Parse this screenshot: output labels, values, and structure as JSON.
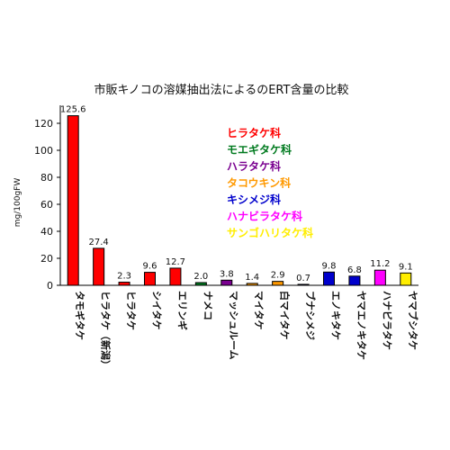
{
  "chart_data": {
    "type": "bar",
    "title": "市販キノコの溶媒抽出法によるのERT含量の比較",
    "ylabel": "mg/100gFW",
    "xlabel": "",
    "ylim": [
      0,
      130
    ],
    "yticks": [
      0,
      20,
      40,
      60,
      80,
      100,
      120
    ],
    "categories": [
      "タモギタケ",
      "ヒラタケ（新潟）",
      "ヒラタケ",
      "シイタケ",
      "エリンギ",
      "ナメコ",
      "マッシュルーム",
      "マイタケ",
      "白マイタケ",
      "ブナシメジ",
      "エノキタケ",
      "ヤマエノキタケ",
      "ハナビラタケ",
      "ヤマブシタケ"
    ],
    "values": [
      125.6,
      27.4,
      2.3,
      9.6,
      12.7,
      2.0,
      3.8,
      1.4,
      2.9,
      0.7,
      9.8,
      6.8,
      11.2,
      9.1
    ],
    "value_labels": [
      "125.6",
      "27.4",
      "2.3",
      "9.6",
      "12.7",
      "2.0",
      "3.8",
      "1.4",
      "2.9",
      "0.7",
      "9.8",
      "6.8",
      "11.2",
      "9.1"
    ],
    "bar_groups": [
      0,
      0,
      0,
      0,
      0,
      1,
      2,
      3,
      3,
      4,
      4,
      4,
      5,
      6
    ],
    "legend": [
      {
        "name": "ヒラタケ科",
        "color": "#ff0000"
      },
      {
        "name": "モエギタケ科",
        "color": "#007a1f"
      },
      {
        "name": "ハラタケ科",
        "color": "#7a0090"
      },
      {
        "name": "タコウキン科",
        "color": "#ff9900"
      },
      {
        "name": "キシメジ科",
        "color": "#0000cc"
      },
      {
        "name": "ハナビラタケ科",
        "color": "#ff00ff"
      },
      {
        "name": "サンゴハリタケ科",
        "color": "#ffee00"
      }
    ],
    "grid": false,
    "legend_position": "top-center"
  }
}
